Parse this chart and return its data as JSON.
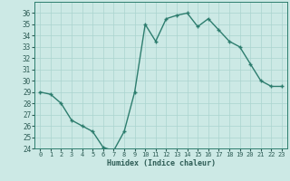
{
  "x": [
    0,
    1,
    2,
    3,
    4,
    5,
    6,
    7,
    8,
    9,
    10,
    11,
    12,
    13,
    14,
    15,
    16,
    17,
    18,
    19,
    20,
    21,
    22,
    23
  ],
  "y": [
    29,
    28.8,
    28,
    26.5,
    26,
    25.5,
    24.1,
    23.8,
    25.5,
    29,
    35,
    33.5,
    35.5,
    35.8,
    36,
    34.8,
    35.5,
    34.5,
    33.5,
    33,
    31.5,
    30,
    29.5,
    29.5
  ],
  "line_color": "#2d7d6e",
  "marker_color": "#2d7d6e",
  "bg_color": "#cce9e5",
  "grid_color": "#aad4cf",
  "xlabel": "Humidex (Indice chaleur)",
  "xlim": [
    -0.5,
    23.5
  ],
  "ylim": [
    24,
    37
  ],
  "yticks": [
    24,
    25,
    26,
    27,
    28,
    29,
    30,
    31,
    32,
    33,
    34,
    35,
    36
  ],
  "xticks": [
    0,
    1,
    2,
    3,
    4,
    5,
    6,
    7,
    8,
    9,
    10,
    11,
    12,
    13,
    14,
    15,
    16,
    17,
    18,
    19,
    20,
    21,
    22,
    23
  ],
  "marker_size": 2.5,
  "line_width": 1.0
}
